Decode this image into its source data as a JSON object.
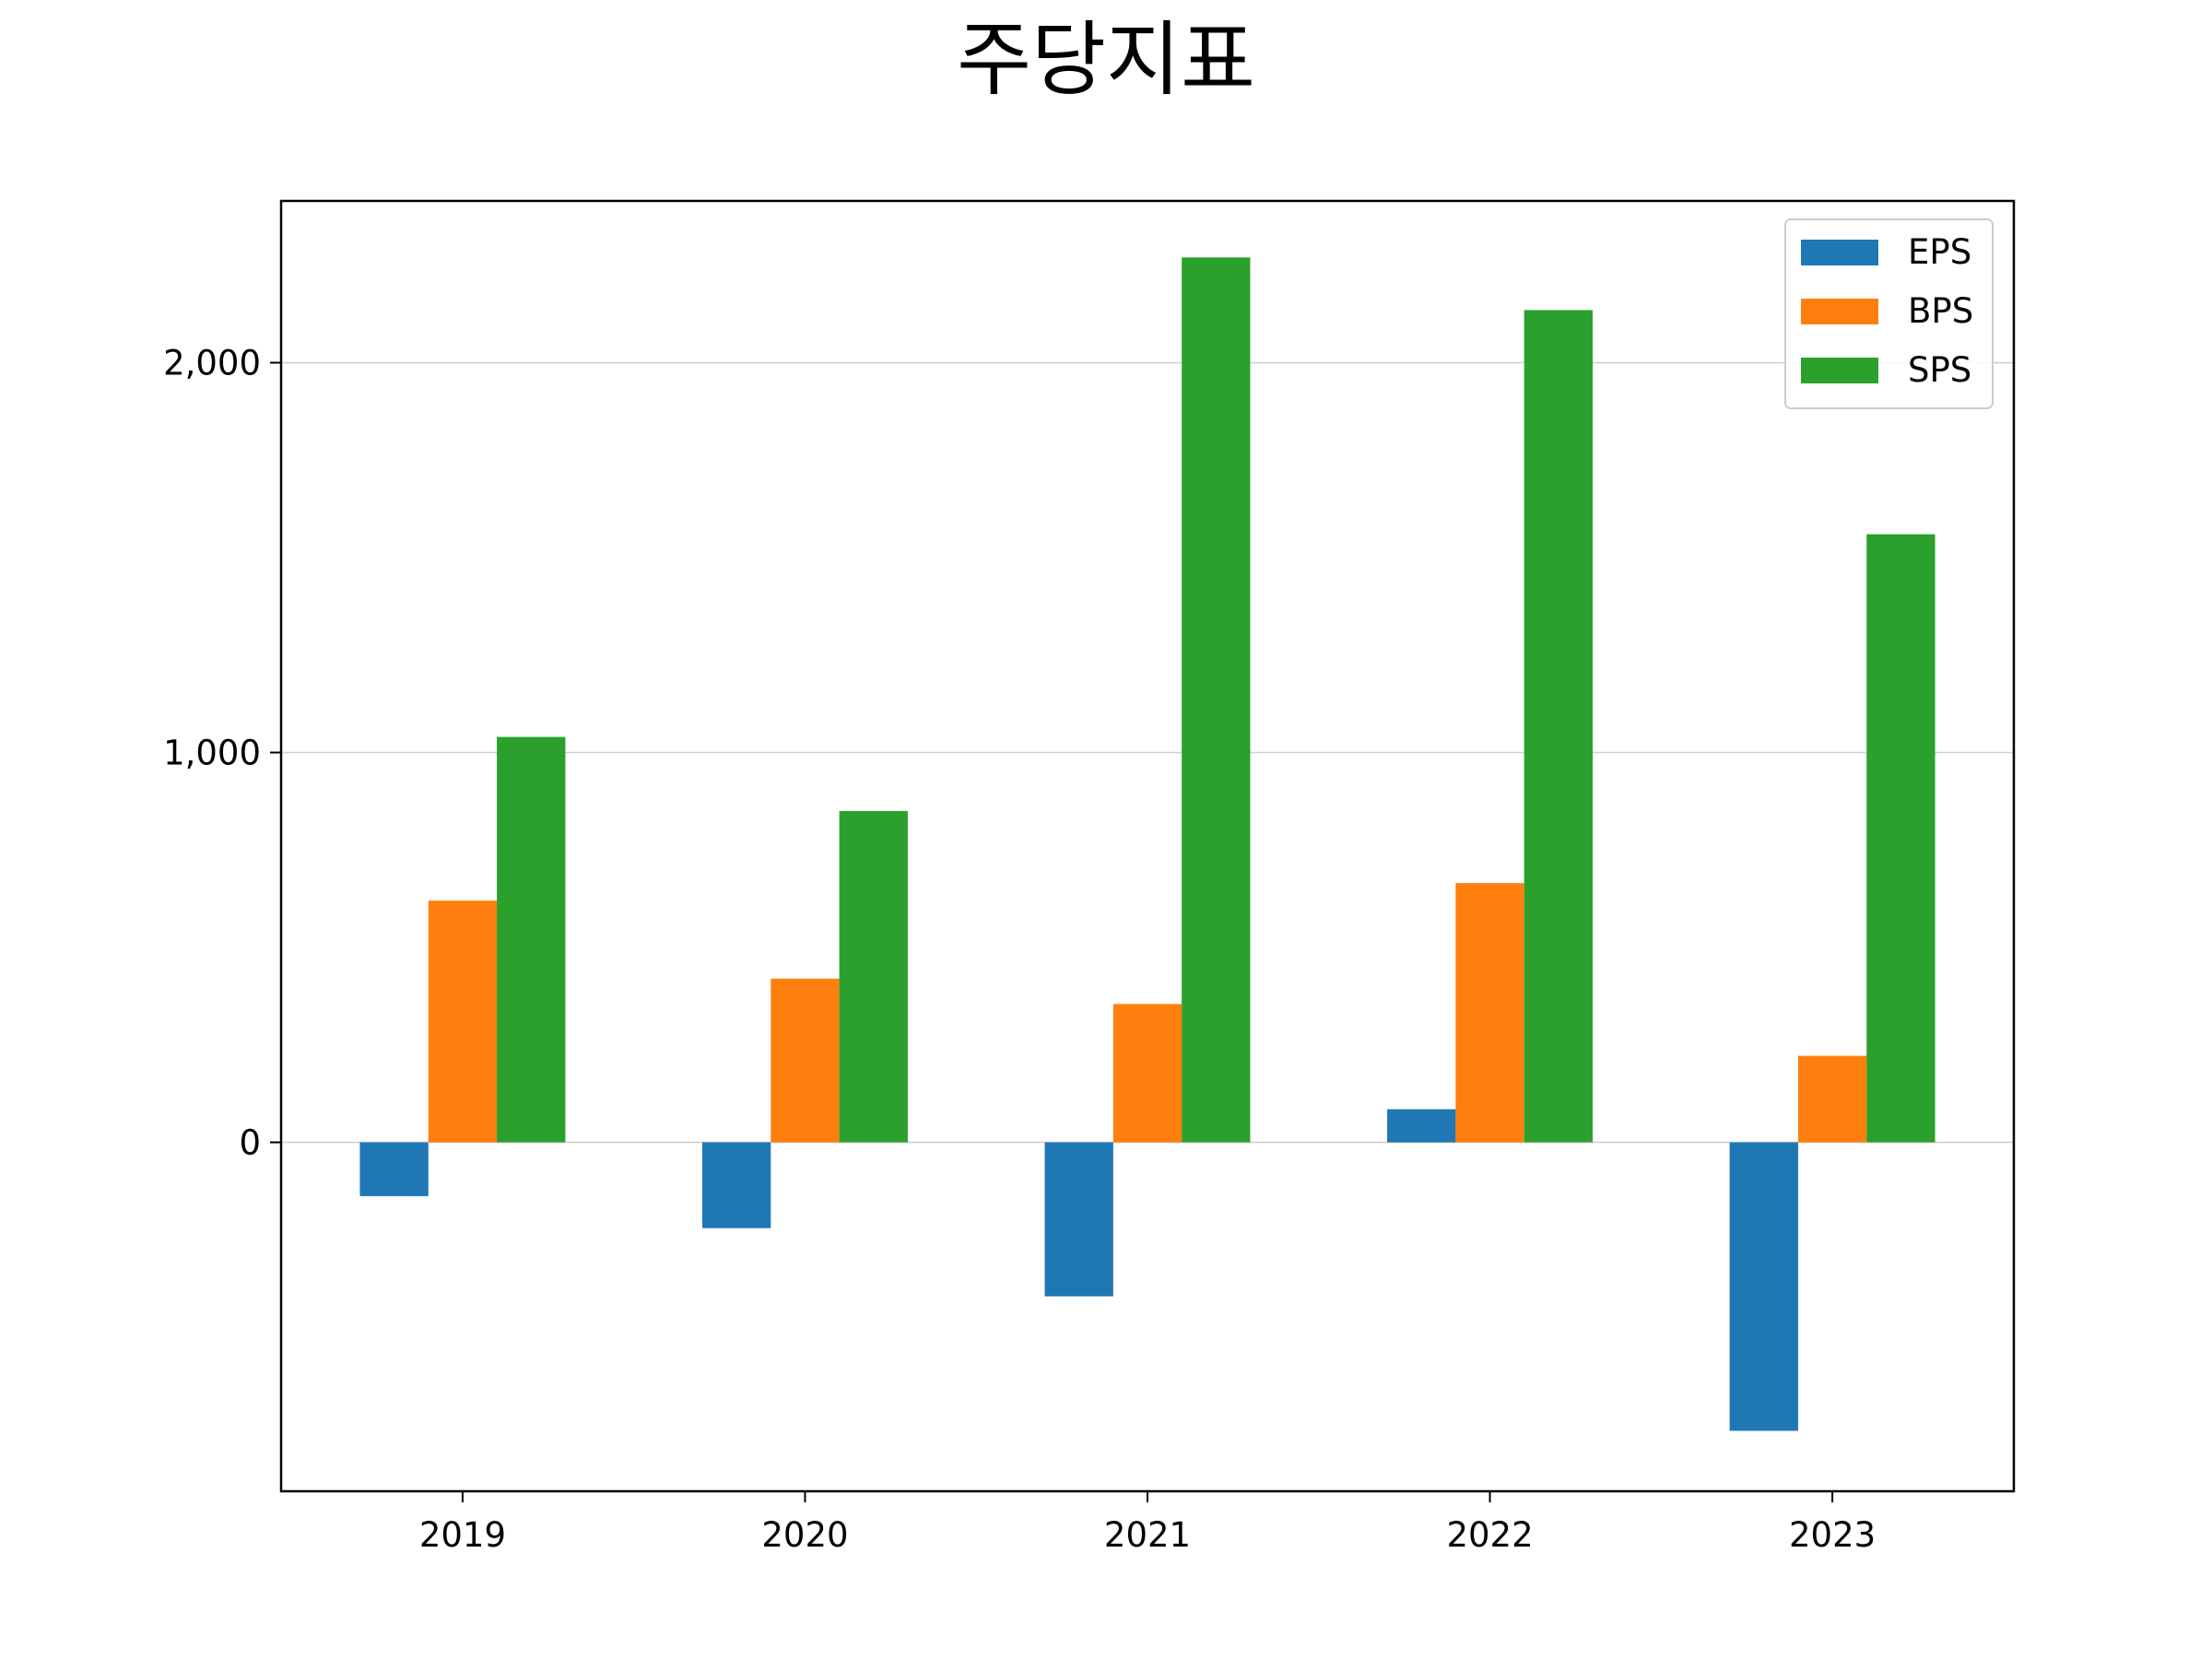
{
  "chart_data": {
    "type": "bar",
    "title": "주당지표",
    "xlabel": "",
    "ylabel": "",
    "categories": [
      "2019",
      "2020",
      "2021",
      "2022",
      "2023"
    ],
    "series": [
      {
        "name": "EPS",
        "color": "#1f77b4",
        "values": [
          -138,
          -220,
          -395,
          85,
          -740
        ]
      },
      {
        "name": "BPS",
        "color": "#ff7f0e",
        "values": [
          620,
          420,
          355,
          665,
          222
        ]
      },
      {
        "name": "SPS",
        "color": "#2ca02c",
        "values": [
          1040,
          850,
          2270,
          2135,
          1560
        ]
      }
    ],
    "ylim": [
      -895,
      2415
    ],
    "yticks": [
      0,
      1000,
      2000
    ],
    "ytick_labels": [
      "0",
      "1,000",
      "2,000"
    ],
    "grid": "horizontal",
    "legend_position": "top-right"
  }
}
